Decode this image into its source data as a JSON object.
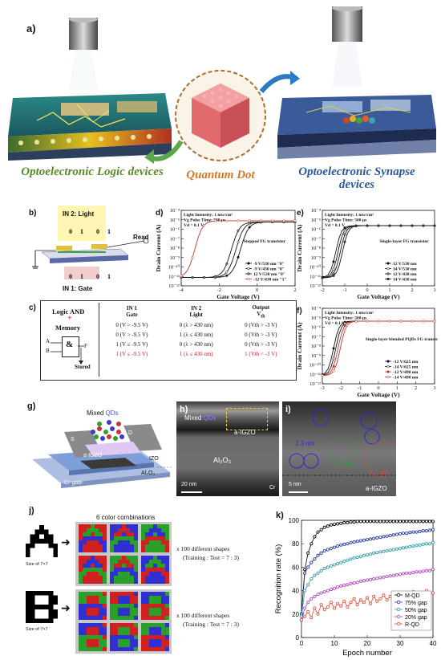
{
  "panel_a": {
    "label": "a)",
    "logic_title": "Optoelectronic Logic devices",
    "qd_title": "Quantum Dot",
    "synapse_title": "Optoelectronic Synapse devices"
  },
  "panel_b": {
    "label": "b)",
    "in2": "IN 2: Light",
    "in1": "IN 1: Gate",
    "read": "Read",
    "bits_top": [
      "0",
      "1",
      "0",
      "1"
    ],
    "bits_bottom": [
      "0",
      "1",
      "0",
      "1"
    ]
  },
  "panel_c": {
    "label": "c)",
    "logic": "Logic AND",
    "plus": "+",
    "memory": "Memory",
    "gate_symbol": "&",
    "in_a": "A",
    "in_b": "B",
    "out_f": "F",
    "stored": "Stored",
    "headers": [
      "IN 1\nGate",
      "IN 2\nLight",
      "Output\nVth"
    ],
    "rows": [
      [
        "0 (V > -9.5 V)",
        "0 (λ > 430 nm)",
        "0 (Vth > -3 V)"
      ],
      [
        "0 (V > -9.5 V)",
        "1 (λ ≤ 430 nm)",
        "0 (Vth > -3 V)"
      ],
      [
        "1 (V ≤ -9.5 V)",
        "0 (λ > 430 nm)",
        "0 (Vth > -3 V)"
      ],
      [
        "1 (V ≤ -9.5 V)",
        "1 (λ ≤ 430 nm)",
        "1 (Vth < -3 V)"
      ]
    ],
    "highlight_color": "#cc2222"
  },
  "panel_d": {
    "label": "d)",
    "ann": [
      "Light Intensity: 1 mw/cm²",
      "Vg Pulse Time: 500 μs",
      "Vd = 0.1 V"
    ],
    "tag": "Stepped FG transistor",
    "legend": [
      "-9 V/530 nm \"0\"",
      "-9 V/430 nm \"0\"",
      "12 V/530 nm \"0\"",
      "-12 V/430 nm \"1\""
    ]
  },
  "panel_e": {
    "label": "e)",
    "ann": [
      "Light Intensity: 1 mw/cm²",
      "Vg Pulse Time: 500 μs",
      "Vd = 0.1 V"
    ],
    "tag": "Single-layer FG transistor",
    "legend": [
      "12 V/530 nm",
      "14 V/530 nm",
      "12 V/430 nm",
      "14 V/430 nm"
    ]
  },
  "panel_f": {
    "label": "f)",
    "ann": [
      "Light Intensity: 1 mw/cm²",
      "Vg Pulse Time: 500 μs",
      "Vd = 0.1 V"
    ],
    "tag": "Single-layer blended PQDs FG transistor",
    "legend": [
      "-12 V/625 nm",
      "-14 V/625 nm",
      "-12 V/490 nm",
      "-14 V/490 nm"
    ]
  },
  "iv_axes": {
    "ylabel": "Drain Current (A)",
    "xlabel": "Gate Voltage (V)",
    "y_ticks": [
      "10⁻⁴",
      "10⁻⁵",
      "10⁻⁶",
      "10⁻⁷",
      "10⁻⁸",
      "10⁻⁹",
      "10⁻¹⁰",
      "10⁻¹¹",
      "10⁻¹²"
    ],
    "x_ticks_d": [
      "-4",
      "-2",
      "0",
      "2"
    ],
    "x_ticks_e": [
      "-2",
      "-1",
      "0",
      "1",
      "2",
      "3"
    ],
    "x_ticks_f": [
      "-3",
      "-2",
      "-1",
      "0",
      "1",
      "2",
      "3"
    ]
  },
  "panel_g": {
    "label": "g)",
    "mixed": "Mixed",
    "qds": "QDs",
    "s": "S",
    "d": "D",
    "igzo": "a-IGZO",
    "izo": "IZO",
    "al2o3": "Al₂O₃",
    "gate": "Cr gate"
  },
  "panel_h": {
    "label": "h)",
    "mixed": "Mixed",
    "qds": "QDs",
    "igzo": "a-IGZO",
    "al2o3": "Al₂O₃",
    "cr": "Cr",
    "scale": "20 nm"
  },
  "panel_i": {
    "label": "i)",
    "d1": "3.3 nm",
    "d2": "4.4 nm",
    "d3": "7.1 nm",
    "igzo": "a-IGZO",
    "scale": "5 nm"
  },
  "panel_j": {
    "label": "j)",
    "title": "6 color combinations",
    "size1": "Size of 7×7",
    "size2": "Size of 7×7",
    "shapes1": "x 100 different shapes",
    "ratio1": "(Training : Test = 7 : 3)",
    "shapes2": "x 100 different shapes",
    "ratio2": "(Training : Test = 7 : 3)"
  },
  "panel_k": {
    "label": "k)",
    "chart_data": {
      "type": "line",
      "xlabel": "Epoch number",
      "ylabel": "Recognition rate (%)",
      "xlim": [
        0,
        40
      ],
      "ylim": [
        0,
        100
      ],
      "x_ticks": [
        0,
        10,
        20,
        30,
        40
      ],
      "y_ticks": [
        0,
        20,
        40,
        60,
        80,
        100
      ],
      "legend_position": "bottom-right",
      "series": [
        {
          "name": "M-QD",
          "color": "#000000",
          "values": [
            20,
            58,
            72,
            80,
            86,
            90,
            92,
            94,
            95,
            96,
            96.5,
            97,
            97.5,
            98,
            98,
            98.5,
            98.5,
            99,
            99,
            99,
            99,
            99,
            99,
            99,
            99,
            99,
            99,
            99,
            99,
            99,
            99,
            99,
            99,
            99,
            99,
            99,
            99,
            99,
            99,
            99,
            99
          ]
        },
        {
          "name": "75% gap",
          "color": "#1f2fa0",
          "values": [
            20,
            55,
            60,
            64,
            67,
            70,
            72,
            74,
            75,
            76,
            77,
            78,
            79,
            79.5,
            80,
            81,
            81.5,
            82,
            82.5,
            83,
            83.5,
            84,
            84.5,
            85,
            85.5,
            86,
            86.5,
            87,
            87.5,
            88,
            88.5,
            89,
            89,
            89.5,
            90,
            90,
            90.5,
            91,
            91,
            91.5,
            92
          ]
        },
        {
          "name": "50% gap",
          "color": "#2a9aa8",
          "values": [
            18,
            40,
            45,
            50,
            53,
            55,
            57,
            59,
            60,
            61,
            62,
            63,
            64,
            65,
            66,
            67,
            68,
            68.5,
            69,
            70,
            70.5,
            71,
            72,
            72.5,
            73,
            73.5,
            74,
            74.5,
            75,
            75.5,
            76,
            76.5,
            77,
            77.5,
            78,
            78.5,
            79,
            79.5,
            80,
            80,
            81
          ]
        },
        {
          "name": "20% gap",
          "color": "#b040c0",
          "values": [
            15,
            25,
            30,
            33,
            35,
            37,
            38,
            39,
            40,
            41,
            42,
            43,
            44,
            44.5,
            45,
            46,
            46.5,
            47,
            48,
            48.5,
            49,
            49.5,
            50,
            50.5,
            51,
            51.5,
            52,
            52.5,
            53,
            53.5,
            54,
            54.5,
            55,
            55,
            55.5,
            56,
            56,
            56.5,
            57,
            57,
            58
          ]
        },
        {
          "name": "R-QD",
          "color": "#e04a30",
          "values": [
            15,
            18,
            22,
            17,
            25,
            20,
            28,
            24,
            26,
            30,
            25,
            29,
            27,
            31,
            26,
            30,
            33,
            28,
            32,
            30,
            34,
            29,
            35,
            31,
            33,
            36,
            32,
            35,
            34,
            37,
            33,
            38,
            35,
            36,
            39,
            34,
            38,
            37,
            40,
            36,
            38
          ]
        }
      ]
    }
  }
}
